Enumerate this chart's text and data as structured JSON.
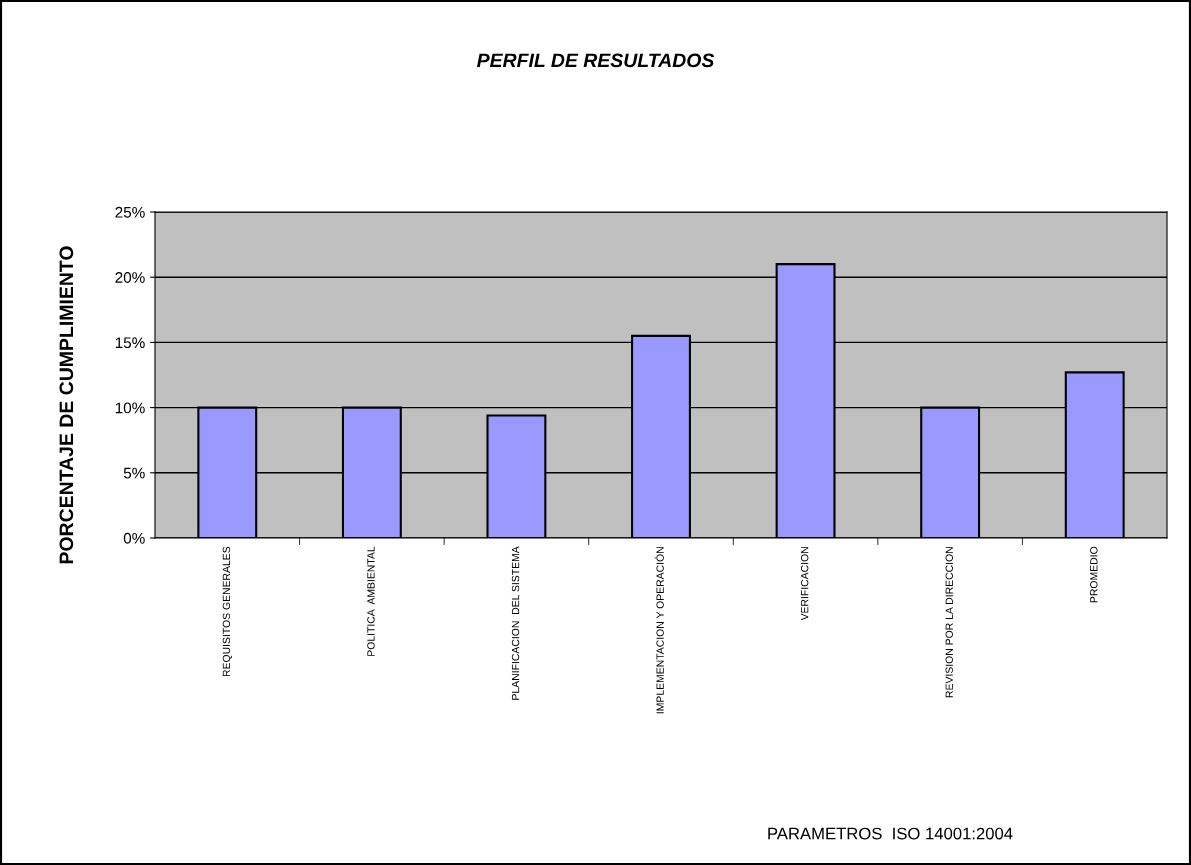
{
  "chart_data": {
    "type": "bar",
    "title": "PERFIL DE RESULTADOS",
    "annotations": [
      "PARAMETROS  ISO 14001:2004"
    ],
    "ylabel": "PORCENTAJE DE CUMPLIMIENTO",
    "categories": [
      "REQUISITOS GENERALES",
      "POLITICA  AMBIENTAL",
      "PLANIFICACION  DEL SISTEMA",
      "IMPLEMENTACION Y OPERACIÓN",
      "VERIFICACION",
      "REVISION POR LA DIRECCION",
      "PROMEDIO"
    ],
    "values": [
      10,
      10,
      9.4,
      15.5,
      21,
      10,
      12.7
    ],
    "color": "#9999ff",
    "ylim": [
      0,
      25
    ],
    "yticks": [
      {
        "value": 0,
        "label": "0%"
      },
      {
        "value": 5,
        "label": "5%"
      },
      {
        "value": 10,
        "label": "10%"
      },
      {
        "value": 15,
        "label": "15%"
      },
      {
        "value": 20,
        "label": "20%"
      },
      {
        "value": 25,
        "label": "25%"
      }
    ],
    "grid": "y",
    "legend": false
  }
}
